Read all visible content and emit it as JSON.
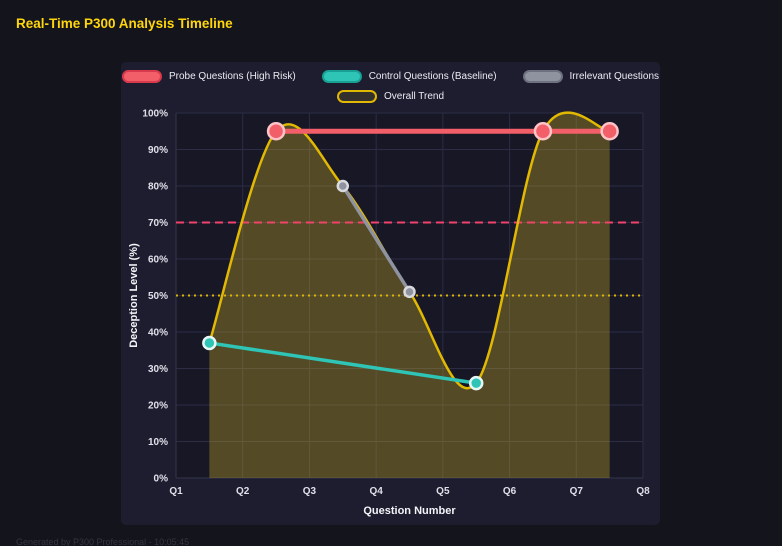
{
  "page": {
    "title": "Real-Time P300 Analysis Timeline",
    "footer": "Generated by P300 Professional - 10:05:45"
  },
  "chart_data": {
    "type": "line",
    "title": "Real-Time P300 Analysis Timeline",
    "xlabel": "Question Number",
    "ylabel": "Deception Level (%)",
    "x_tick_labels": [
      "Q1",
      "Q2",
      "Q3",
      "Q4",
      "Q5",
      "Q6",
      "Q7",
      "Q8"
    ],
    "x_tick_values": [
      1,
      2,
      3,
      4,
      5,
      6,
      7,
      8
    ],
    "x_range": [
      1,
      8
    ],
    "ylim": [
      0,
      100
    ],
    "y_tick_step": 10,
    "y_tick_suffix": "%",
    "grid": true,
    "legend_position": "top",
    "colors": {
      "page_bg": "#14141d",
      "panel_bg": "#1d1d2f",
      "plot_bg": "#171726",
      "grid": "#2c2c45",
      "axis_line": "#34344e",
      "title": "#ffd60a"
    },
    "series": [
      {
        "name": "Probe Questions (High Risk)",
        "type": "line",
        "color": "#f25f68",
        "marker_border": "#ffc3c8",
        "swatch_fill": "#f25f68",
        "swatch_border": "#d93a4b",
        "line_width": 5,
        "marker_radius": 8,
        "points": [
          [
            2.5,
            95
          ],
          [
            6.5,
            95
          ],
          [
            7.5,
            95
          ]
        ]
      },
      {
        "name": "Control Questions (Baseline)",
        "type": "line",
        "color": "#2ec4b6",
        "marker_border": "#e6f7f5",
        "swatch_fill": "#2ec4b6",
        "swatch_border": "#17a093",
        "line_width": 3.5,
        "marker_radius": 6,
        "points": [
          [
            1.5,
            37
          ],
          [
            5.5,
            26
          ]
        ]
      },
      {
        "name": "Irrelevant Questions",
        "type": "line",
        "color": "#8f939f",
        "marker_border": "#d8dae0",
        "swatch_fill": "#8f939f",
        "swatch_border": "#6e7280",
        "line_width": 3.5,
        "marker_radius": 5,
        "points": [
          [
            3.5,
            80
          ],
          [
            4.5,
            51
          ]
        ]
      },
      {
        "name": "Overall Trend",
        "type": "spline",
        "color": "#e2b902",
        "fill": "rgba(226,192,36,0.30)",
        "swatch_fill": "rgba(226,192,36,0.12)",
        "swatch_border": "#e2b902",
        "line_width": 2.5,
        "marker_radius": 0,
        "points": [
          [
            1.5,
            37
          ],
          [
            2.5,
            95
          ],
          [
            3.5,
            80
          ],
          [
            4.5,
            51
          ],
          [
            5.5,
            26
          ],
          [
            6.5,
            95
          ],
          [
            7.5,
            95
          ]
        ]
      }
    ],
    "thresholds": [
      {
        "value": 70,
        "color": "#f1426a",
        "dash": "8 5",
        "width": 2
      },
      {
        "value": 50,
        "color": "#dfb400",
        "dash": "2 4",
        "width": 2
      }
    ]
  }
}
